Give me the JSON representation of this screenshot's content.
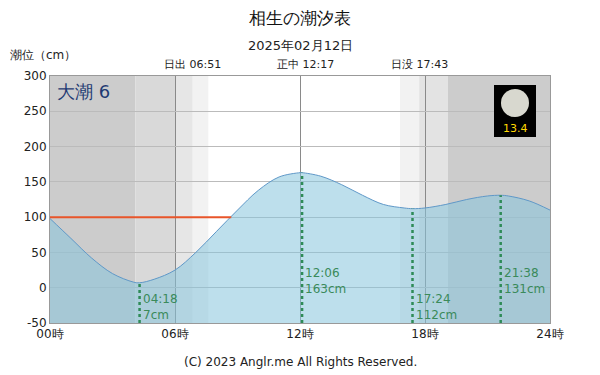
{
  "chart_data": {
    "type": "area",
    "title": "相生の潮汐表",
    "subtitle": "2025年02月12日",
    "y_label": "潮位（cm）",
    "x": [
      0,
      1,
      2,
      3,
      4,
      4.3,
      5,
      6,
      7,
      8,
      9,
      10,
      11,
      12,
      12.1,
      13,
      14,
      15,
      16,
      17,
      17.4,
      18,
      19,
      20,
      21,
      21.633,
      22,
      23,
      24
    ],
    "values": [
      98,
      70,
      42,
      20,
      8,
      7,
      12,
      25,
      50,
      80,
      110,
      138,
      157,
      163,
      163,
      158,
      146,
      131,
      118,
      113,
      112,
      113,
      118,
      125,
      130,
      131,
      130,
      123,
      110
    ],
    "color": "#87c4dc",
    "xlim": [
      0,
      24
    ],
    "xticks": [
      {
        "value": 0,
        "label": "00時"
      },
      {
        "value": 6,
        "label": "06時"
      },
      {
        "value": 12,
        "label": "12時"
      },
      {
        "value": 18,
        "label": "18時"
      },
      {
        "value": 24,
        "label": "24時"
      }
    ],
    "ylim": [
      -50,
      300
    ],
    "yticks": [
      -50,
      0,
      50,
      100,
      150,
      200,
      250,
      300
    ],
    "grid": true,
    "tide_name": "大潮 6",
    "moon_age": 13.4,
    "sun": [
      {
        "name": "日出",
        "time": "06:51"
      },
      {
        "name": "正中",
        "time": "12:17"
      },
      {
        "name": "日没",
        "time": "17:43"
      }
    ],
    "extremes": [
      {
        "time": "04:18",
        "value": 7,
        "value_label": "7cm"
      },
      {
        "time": "12:06",
        "value": 163,
        "value_label": "163cm"
      },
      {
        "time": "17:24",
        "value": 112,
        "value_label": "112cm"
      },
      {
        "time": "21:38",
        "value": 131,
        "value_label": "131cm"
      }
    ],
    "reference_line": {
      "value": 100,
      "x": [
        0,
        8.7
      ],
      "color": "#e8552a"
    },
    "shading": [
      {
        "x": [
          0,
          4.1
        ],
        "color": "#cccccc"
      },
      {
        "x": [
          4.1,
          6.0
        ],
        "color": "#d9d9d9"
      },
      {
        "x": [
          6.0,
          6.85
        ],
        "color": "#e6e6e6"
      },
      {
        "x": [
          6.85,
          7.6
        ],
        "color": "#f2f2f2"
      },
      {
        "x": [
          16.8,
          17.72
        ],
        "color": "#f2f2f2"
      },
      {
        "x": [
          17.72,
          19.1
        ],
        "color": "#e3e3e3"
      },
      {
        "x": [
          19.1,
          24
        ],
        "color": "#cccccc"
      }
    ],
    "copyright": "(C) 2023 Anglr.me All Rights Reserved."
  }
}
